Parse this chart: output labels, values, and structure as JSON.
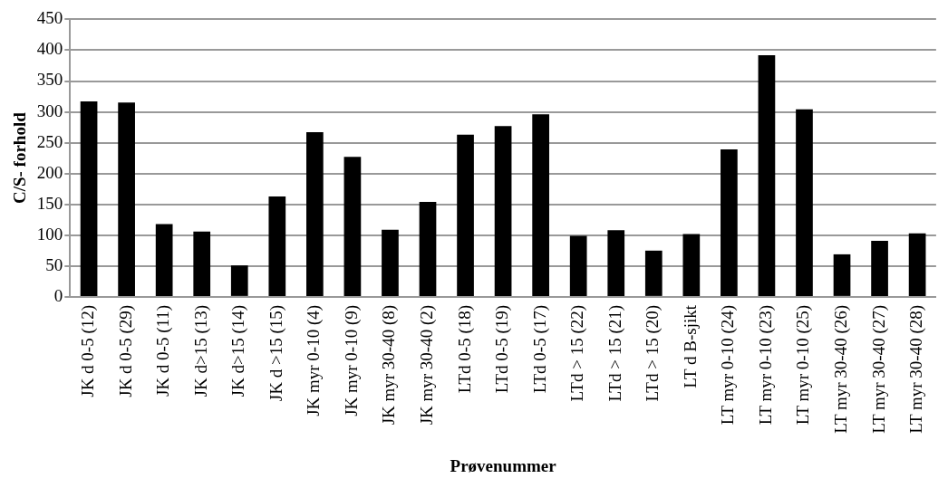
{
  "chart_data": {
    "type": "bar",
    "xlabel": "Prøvenummer",
    "ylabel": "C/S- forhold",
    "categories": [
      "JK d 0-5 (12)",
      "JK d 0-5 (29)",
      "JK d 0-5 (11)",
      "JK d>15 (13)",
      "JK d>15 (14)",
      "JK d >15 (15)",
      "JK myr 0-10 (4)",
      "JK myr 0-10 (9)",
      "JK myr 30-40 (8)",
      "JK myr 30-40 (2)",
      "LTd 0-5 (18)",
      "LTd 0-5 (19)",
      "LTd 0-5 (17)",
      "LTd > 15 (22)",
      "LTd > 15 (21)",
      "LTd > 15 (20)",
      "LT d B-sjikt",
      "LT myr 0-10 (24)",
      "LT myr 0-10 (23)",
      "LT myr 0-10 (25)",
      "LT myr 30-40 (26)",
      "LT myr 30-40 (27)",
      "LT myr 30-40 (28)"
    ],
    "values": [
      317,
      315,
      118,
      106,
      51,
      163,
      267,
      227,
      109,
      154,
      263,
      277,
      296,
      99,
      108,
      75,
      102,
      239,
      392,
      304,
      69,
      91,
      103
    ],
    "color": "#000000",
    "ylim": [
      0,
      450
    ],
    "yticks": [
      0,
      50,
      100,
      150,
      200,
      250,
      300,
      350,
      400,
      450
    ],
    "grid": "y",
    "legend": false
  }
}
